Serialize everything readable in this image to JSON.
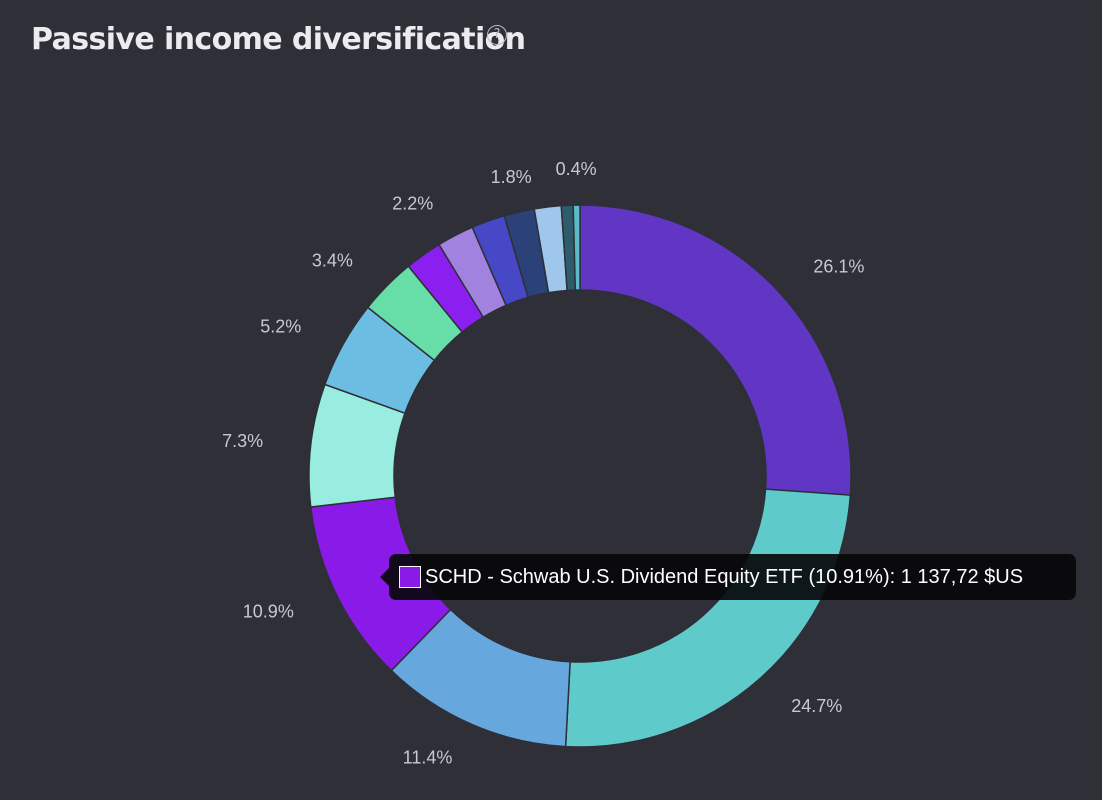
{
  "header": {
    "title": "Passive income diversification",
    "help_icon": "question-circle-icon",
    "help_glyph": "?"
  },
  "chart_data": {
    "type": "pie",
    "title": "Passive income diversification",
    "donut": true,
    "slices": [
      {
        "value": 26.1,
        "label": "26.1%",
        "color": "#6236c4"
      },
      {
        "value": 24.7,
        "label": "24.7%",
        "color": "#5fcaca"
      },
      {
        "value": 11.4,
        "label": "11.4%",
        "color": "#66a8de"
      },
      {
        "value": 10.91,
        "label": "10.9%",
        "color": "#8a1ae8"
      },
      {
        "value": 7.3,
        "label": "7.3%",
        "color": "#98ede0"
      },
      {
        "value": 5.2,
        "label": "5.2%",
        "color": "#6bbde2"
      },
      {
        "value": 3.4,
        "label": "3.4%",
        "color": "#67dea8"
      },
      {
        "value": 2.2,
        "label": "",
        "color": "#8b1ff0"
      },
      {
        "value": 2.2,
        "label": "2.2%",
        "color": "#a183df"
      },
      {
        "value": 2.0,
        "label": "",
        "color": "#4748c6"
      },
      {
        "value": 1.8,
        "label": "1.8%",
        "color": "#2a4277"
      },
      {
        "value": 1.6,
        "label": "",
        "color": "#9fc7ec"
      },
      {
        "value": 0.7,
        "label": "",
        "color": "#2d5d6c"
      },
      {
        "value": 0.4,
        "label": "0.4%",
        "color": "#5bbcc8"
      }
    ]
  },
  "tooltip": {
    "color": "#8a1ae8",
    "text": "SCHD - Schwab U.S. Dividend Equity ETF (10.91%): 1 137,72 $US"
  }
}
